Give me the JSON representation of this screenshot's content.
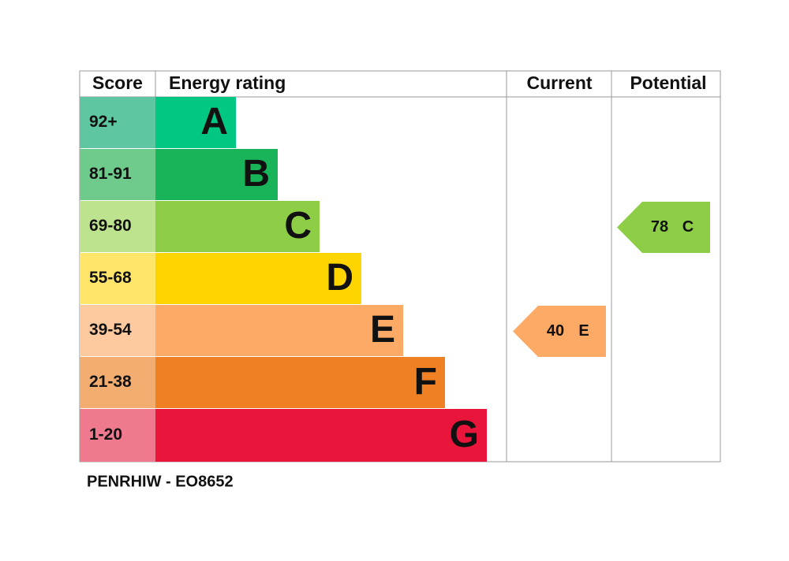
{
  "header": {
    "score": "Score",
    "rating": "Energy rating",
    "current": "Current",
    "potential": "Potential"
  },
  "bands": [
    {
      "score": "92+",
      "letter": "A",
      "color": "#00c781",
      "score_color": "#5ec6a0"
    },
    {
      "score": "81-91",
      "letter": "B",
      "color": "#19b459",
      "score_color": "#6fcb8c"
    },
    {
      "score": "69-80",
      "letter": "C",
      "color": "#8dce46",
      "score_color": "#bde38f"
    },
    {
      "score": "55-68",
      "letter": "D",
      "color": "#ffd500",
      "score_color": "#ffe66a"
    },
    {
      "score": "39-54",
      "letter": "E",
      "color": "#fcaa65",
      "score_color": "#fdcaa0"
    },
    {
      "score": "21-38",
      "letter": "F",
      "color": "#ef8023",
      "score_color": "#f4ad70"
    },
    {
      "score": "1-20",
      "letter": "G",
      "color": "#e9153b",
      "score_color": "#ef7a90"
    }
  ],
  "current": {
    "score": "40",
    "rating": "E"
  },
  "potential": {
    "score": "78",
    "rating": "C"
  },
  "footer": "PENRHIW - EO8652"
}
